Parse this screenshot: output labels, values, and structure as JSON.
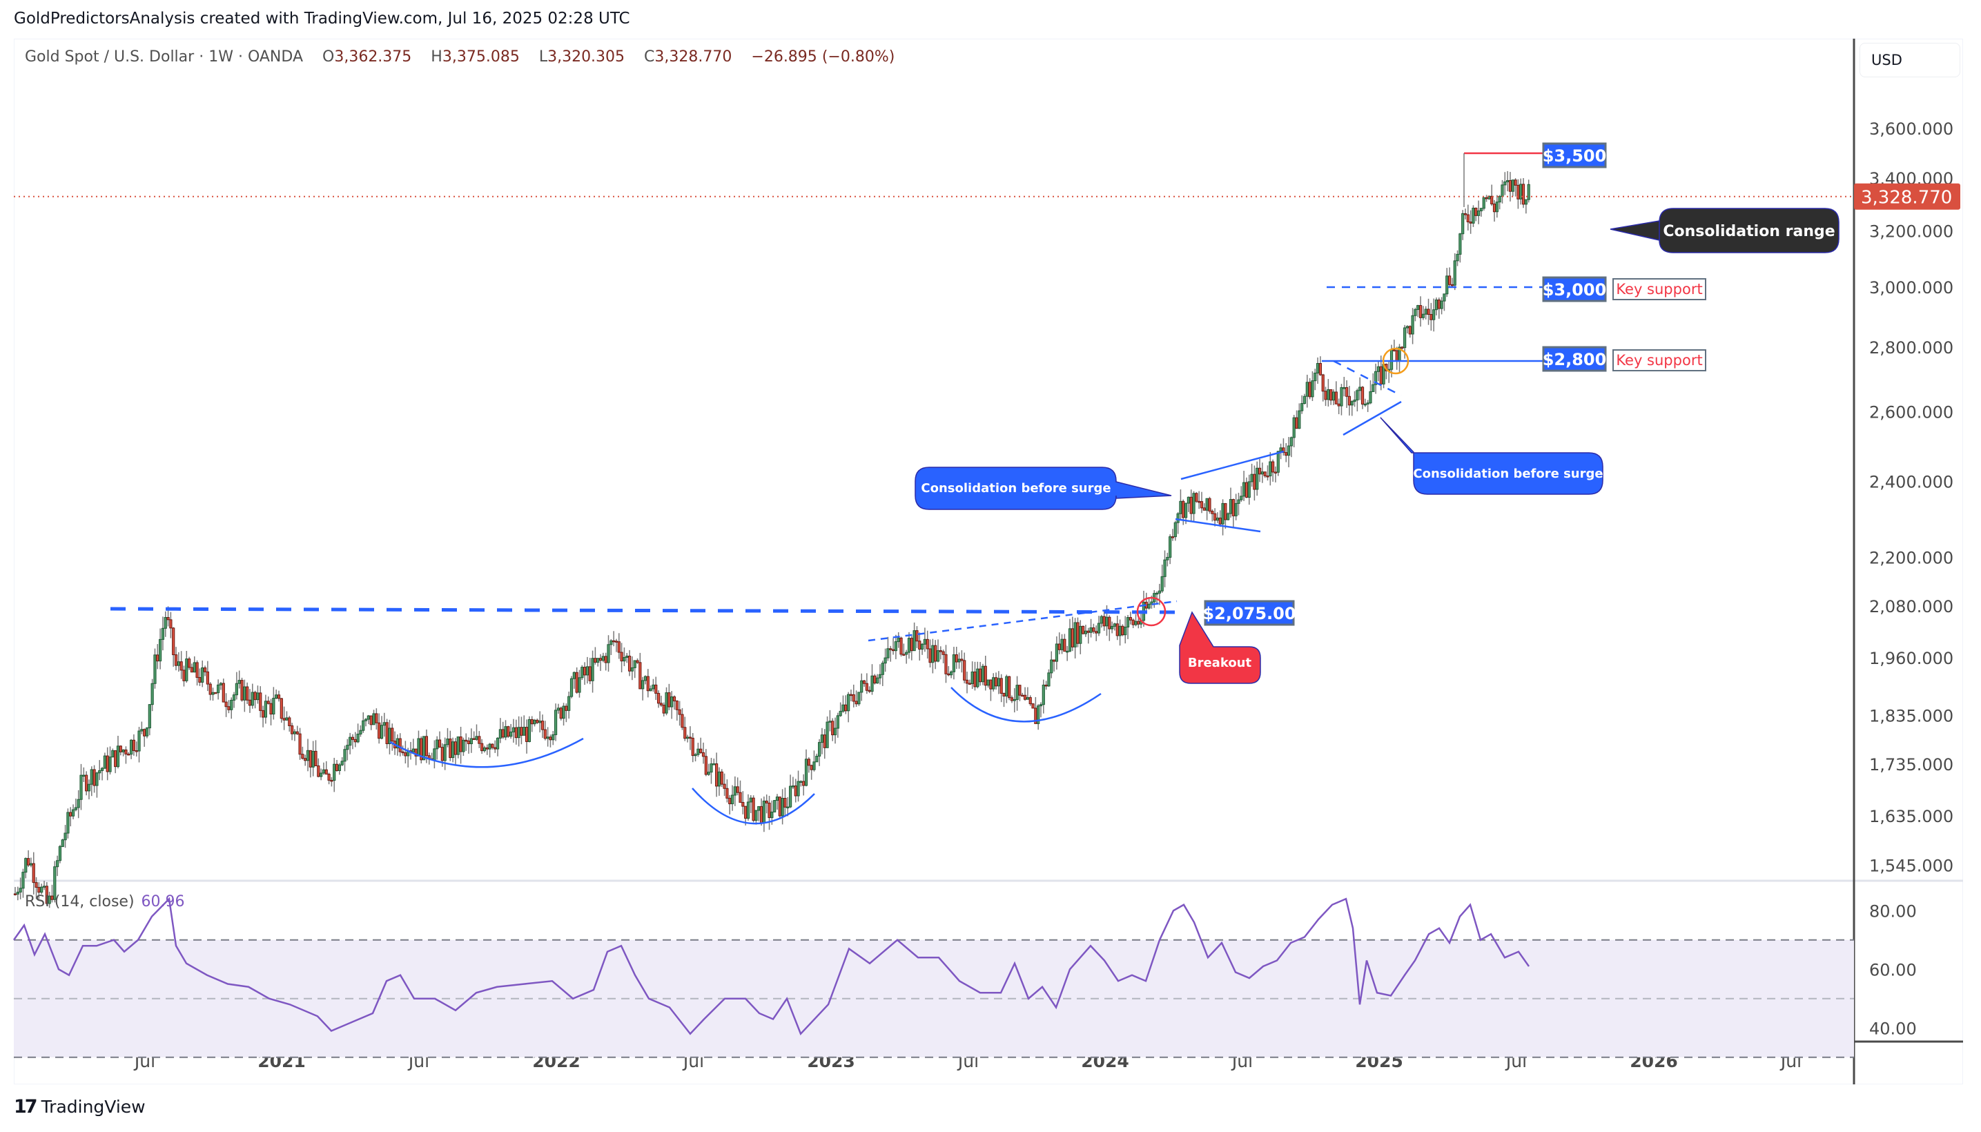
{
  "header": {
    "attribution": "GoldPredictorsAnalysis created with TradingView.com, Jul 16, 2025 02:28 UTC"
  },
  "symbol": {
    "name": "Gold Spot / U.S. Dollar",
    "interval": "1W",
    "exchange": "OANDA",
    "separator": "·",
    "open_label": "O",
    "open": "3,362.375",
    "high_label": "H",
    "high": "3,375.085",
    "low_label": "L",
    "low": "3,320.305",
    "close_label": "C",
    "close": "3,328.770",
    "change": "−26.895",
    "change_pct": "(−0.80%)"
  },
  "currency_button": "USD",
  "last_price_tag": {
    "value": "3,328.770",
    "color": "#d9503f"
  },
  "colors": {
    "up": "#4f9a6a",
    "up_border": "#1f5a35",
    "down": "#d9503f",
    "down_border": "#6b1a12",
    "wick": "#787878",
    "annotation_blue": "#2962ff",
    "annotation_red": "#f23645",
    "rsi_line": "#7e57c2",
    "rsi_band": "#efecf8"
  },
  "annotations": {
    "resistance_label": "$3,500",
    "support_3000_label": "$3,000",
    "support_2800_label": "$2,800",
    "key_support_1": "Key support",
    "key_support_2": "Key support",
    "breakout_level_label": "$2,075.00",
    "consolidation_range": "Consolidation range",
    "consolidation_before_surge_1": "Consolidation before surge",
    "consolidation_before_surge_2": "Consolidation before surge",
    "breakout": "Breakout"
  },
  "rsi": {
    "title": "RSI (14, close)",
    "value": "60.96",
    "ticks": [
      "80.00",
      "60.00",
      "40.00"
    ]
  },
  "footer": {
    "logo_glyph": "17",
    "brand": "TradingView"
  },
  "chart_data": {
    "type": "candlestick",
    "title": "Gold Spot / U.S. Dollar · 1W · OANDA",
    "xlabel": "",
    "ylabel": "USD",
    "y_scale": "log",
    "y_ticks": [
      "3,600.000",
      "3,400.000",
      "3,200.000",
      "3,000.000",
      "2,800.000",
      "2,600.000",
      "2,400.000",
      "2,200.000",
      "2,080.000",
      "1,960.000",
      "1,835.000",
      "1,735.000",
      "1,635.000",
      "1,545.000"
    ],
    "x_ticks": [
      "Jul",
      "2021",
      "Jul",
      "2022",
      "Jul",
      "2023",
      "Jul",
      "2024",
      "Jul",
      "2025",
      "Jul",
      "2026",
      "Jul"
    ],
    "approx_weekly_closes": {
      "2020-03": 1480,
      "2020-05": 1720,
      "2020-07": 1900,
      "2020-08": 2060,
      "2020-10": 1900,
      "2020-12": 1880,
      "2021-03": 1700,
      "2021-06": 1780,
      "2021-09": 1750,
      "2021-12": 1800,
      "2022-03": 1990,
      "2022-07": 1730,
      "2022-10": 1640,
      "2023-01": 1920,
      "2023-05": 2000,
      "2023-10": 1830,
      "2023-12": 2050,
      "2024-03": 2160,
      "2024-04": 2330,
      "2024-07": 2400,
      "2024-10": 2740,
      "2024-12": 2620,
      "2025-02": 2880,
      "2025-04": 3230,
      "2025-06": 3350,
      "2025-07": 3328.77
    },
    "levels": [
      {
        "label": "$3,500",
        "price": 3500,
        "style": "solid",
        "color": "#f23645"
      },
      {
        "label": "$3,000 Key support",
        "price": 3000,
        "style": "dashed",
        "color": "#2962ff"
      },
      {
        "label": "$2,800 Key support",
        "price": 2800,
        "style": "solid",
        "color": "#2962ff"
      },
      {
        "label": "$2,075.00",
        "price": 2075,
        "style": "dashed",
        "color": "#2962ff"
      }
    ],
    "last_price": 3328.77,
    "rsi": {
      "period": 14,
      "last": 60.96,
      "overbought": 70,
      "middle": 50,
      "oversold": 30,
      "ylim": [
        25,
        85
      ]
    }
  }
}
